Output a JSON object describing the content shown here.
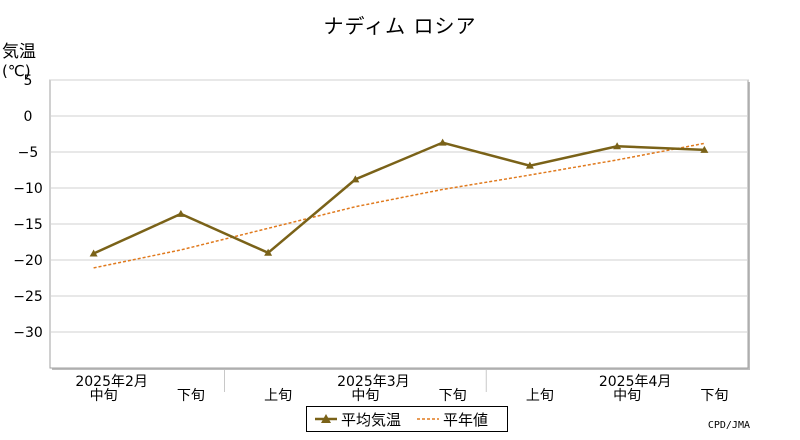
{
  "title": "ナディム ロシア",
  "ylabel": "気温",
  "yunit": "(℃)",
  "credit": "CPD/JMA",
  "colors": {
    "avg": "#7a6218",
    "normal": "#e07a1e",
    "grid": "#d0d0d0",
    "frame": "#a0a0a0"
  },
  "legend": {
    "avg": "平均気温",
    "normal": "平年値"
  },
  "chart_data": {
    "type": "line",
    "title": "ナディム ロシア",
    "ylabel": "気温(℃)",
    "ylim": [
      -35,
      5
    ],
    "yticks": [
      5,
      0,
      -5,
      -10,
      -15,
      -20,
      -25,
      -30
    ],
    "categories": [
      "中旬",
      "下旬",
      "上旬",
      "中旬",
      "下旬",
      "上旬",
      "中旬",
      "下旬"
    ],
    "month_labels": [
      {
        "label": "2025年2月",
        "index": 0
      },
      {
        "label": "2025年3月",
        "index": 3
      },
      {
        "label": "2025年4月",
        "index": 6
      }
    ],
    "series": [
      {
        "name": "平均気温",
        "values": [
          -19.1,
          -13.6,
          -19.0,
          -8.8,
          -3.7,
          -6.9,
          -4.2,
          -4.7
        ]
      },
      {
        "name": "平年値",
        "values": [
          -21.1,
          -18.6,
          -15.6,
          -12.6,
          -10.2,
          -8.2,
          -6.1,
          -3.8
        ]
      }
    ],
    "grid": true,
    "legend_position": "bottom-center"
  }
}
